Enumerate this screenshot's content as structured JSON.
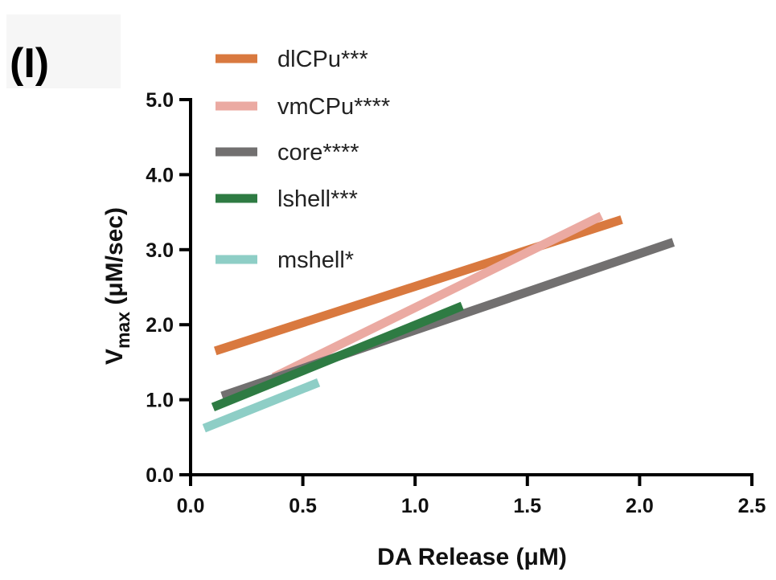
{
  "panel_label": "(I)",
  "chart_data": {
    "type": "line",
    "xlabel": "DA Release (μM)",
    "ylabel_main": "V",
    "ylabel_sub": "max",
    "ylabel_rest": " (μM/sec)",
    "xlim": [
      0,
      2.5
    ],
    "ylim": [
      0,
      5
    ],
    "xticks": [
      "0.0",
      "0.5",
      "1.0",
      "1.5",
      "2.0",
      "2.5"
    ],
    "yticks": [
      "0.0",
      "1.0",
      "2.0",
      "3.0",
      "4.0",
      "5.0"
    ],
    "grid": false,
    "legend_position": "top-left",
    "series": [
      {
        "name": "dlCPu***",
        "color": "#d9793f",
        "x": [
          0.11,
          1.92
        ],
        "y": [
          1.65,
          3.4
        ]
      },
      {
        "name": "vmCPu****",
        "color": "#ebaaa2",
        "x": [
          0.37,
          1.83
        ],
        "y": [
          1.3,
          3.45
        ]
      },
      {
        "name": "core****",
        "color": "#727070",
        "x": [
          0.14,
          2.15
        ],
        "y": [
          1.05,
          3.1
        ]
      },
      {
        "name": "lshell***",
        "color": "#2e7b43",
        "x": [
          0.1,
          1.21
        ],
        "y": [
          0.9,
          2.25
        ]
      },
      {
        "name": "mshell*",
        "color": "#8ecec6",
        "x": [
          0.06,
          0.57
        ],
        "y": [
          0.62,
          1.23
        ]
      }
    ]
  }
}
